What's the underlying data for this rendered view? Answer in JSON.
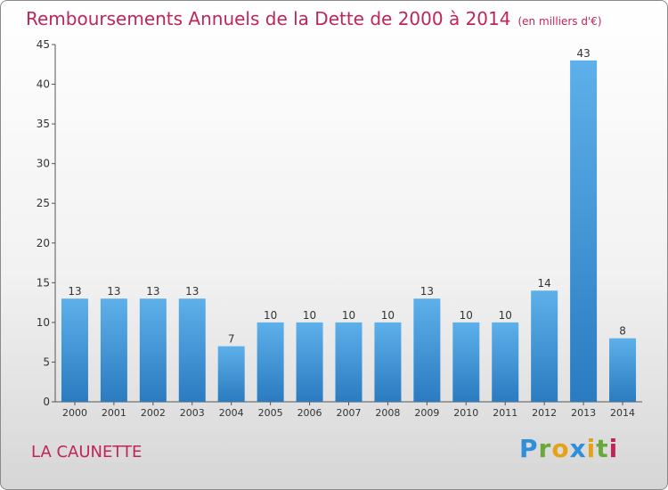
{
  "title": "Remboursements Annuels de la Dette de 2000 à 2014",
  "unit_label": "(en milliers d'€)",
  "commune": "LA CAUNETTE",
  "logo": {
    "letters": [
      "P",
      "r",
      "o",
      "x",
      "i",
      "t",
      "i"
    ]
  },
  "colors": {
    "bar_top": "#5eb0ea",
    "bar_bottom": "#2a7bc0",
    "title": "#c0245b"
  },
  "chart_data": {
    "type": "bar",
    "title": "Remboursements Annuels de la Dette de 2000 à 2014",
    "subtitle": "(en milliers d'€)",
    "categories": [
      "2000",
      "2001",
      "2002",
      "2003",
      "2004",
      "2005",
      "2006",
      "2007",
      "2008",
      "2009",
      "2010",
      "2011",
      "2012",
      "2013",
      "2014"
    ],
    "values": [
      13,
      13,
      13,
      13,
      7,
      10,
      10,
      10,
      10,
      13,
      10,
      10,
      14,
      43,
      8
    ],
    "ylim": [
      0,
      45
    ],
    "yticks": [
      0,
      5,
      10,
      15,
      20,
      25,
      30,
      35,
      40,
      45
    ],
    "grid": false,
    "legend": "none"
  }
}
